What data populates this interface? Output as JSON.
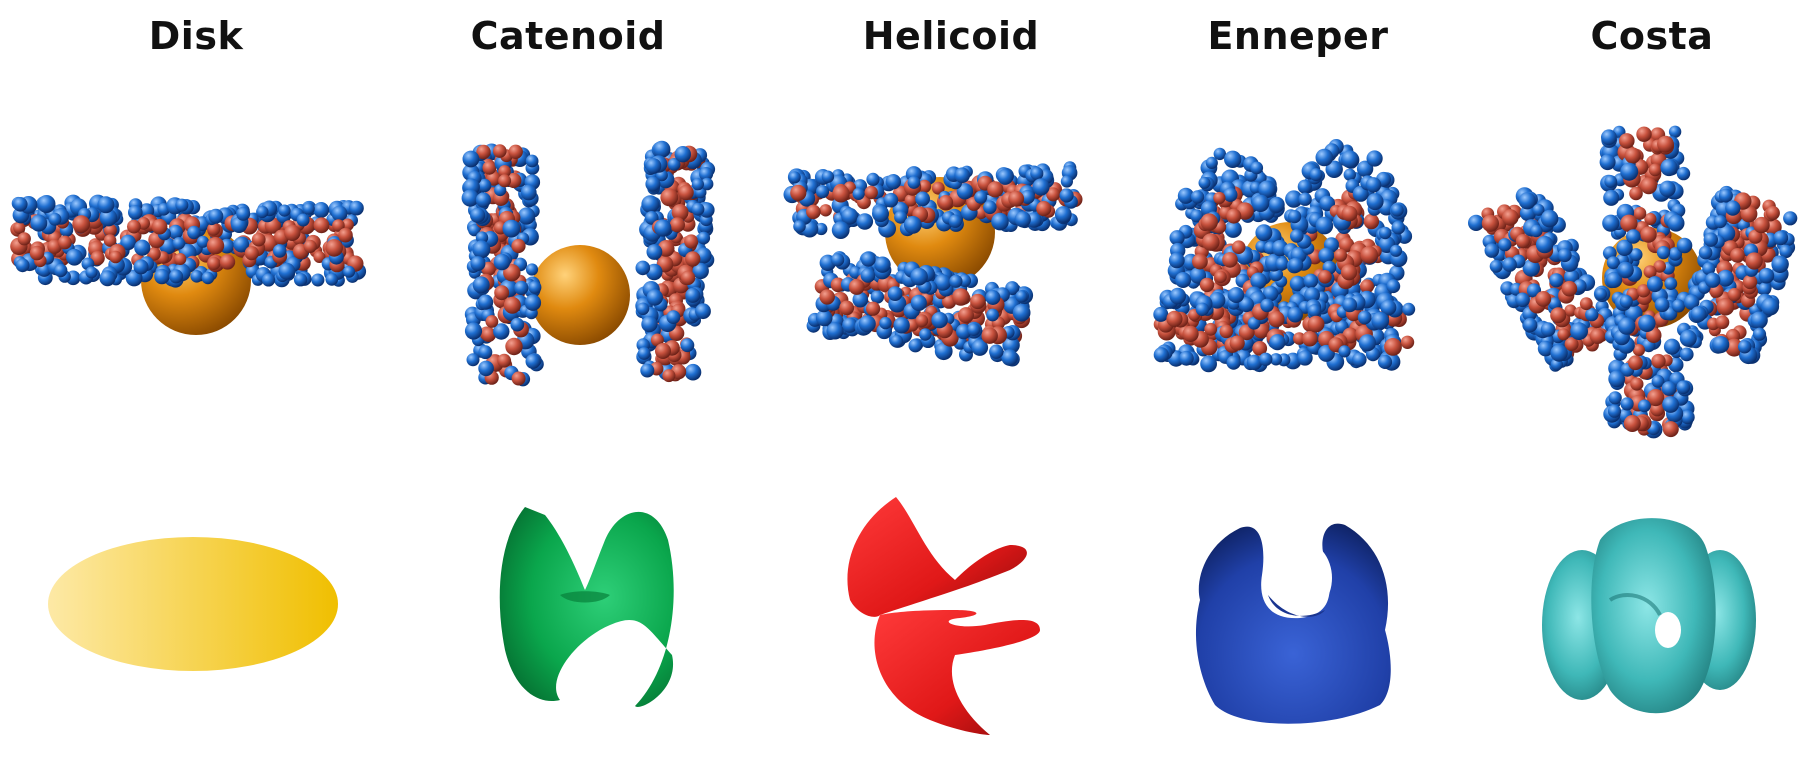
{
  "columns": [
    {
      "key": "disk",
      "title": "Disk",
      "surface_color": "#f2c200"
    },
    {
      "key": "catenoid",
      "title": "Catenoid",
      "surface_color": "#0aa64c"
    },
    {
      "key": "helicoid",
      "title": "Helicoid",
      "surface_color": "#e01818"
    },
    {
      "key": "enneper",
      "title": "Enneper",
      "surface_color": "#2040a8"
    },
    {
      "key": "costa",
      "title": "Costa",
      "surface_color": "#3fb8b8"
    }
  ],
  "colors": {
    "bead_blue": "#1f6fd1",
    "bead_red": "#c8523e",
    "core_orange": "#e08a10"
  }
}
